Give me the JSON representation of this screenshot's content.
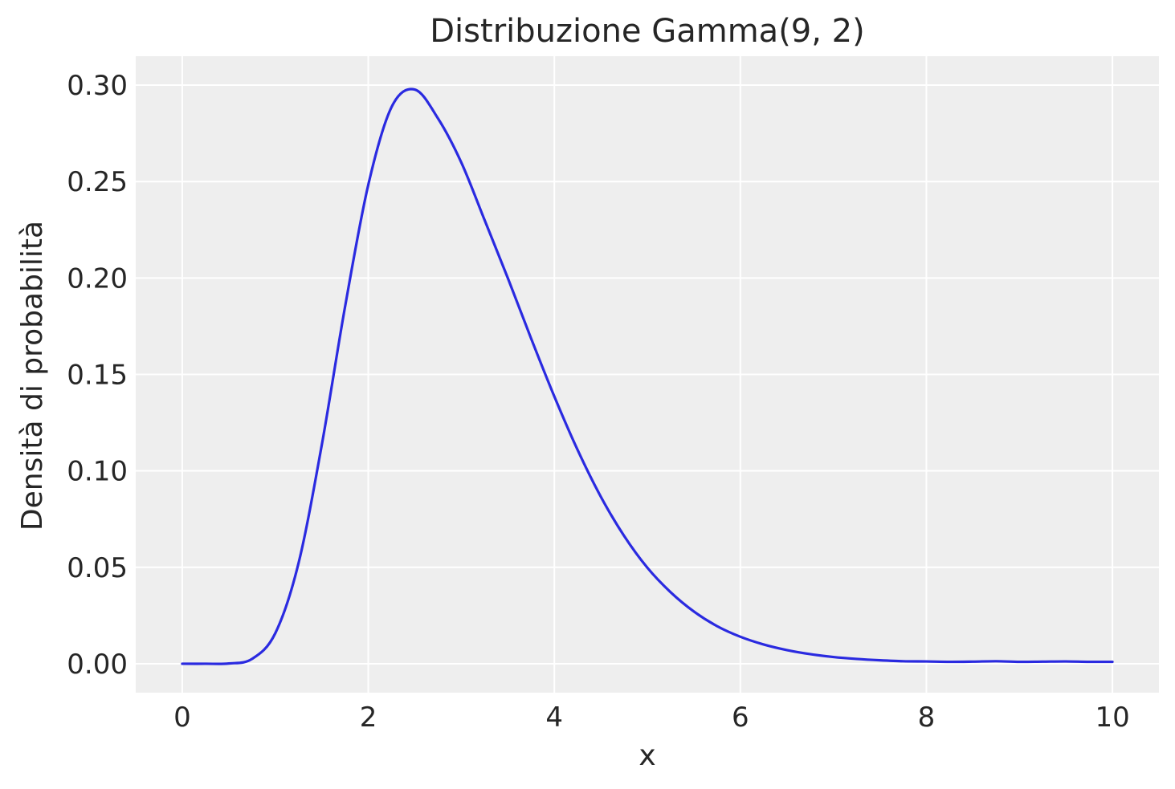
{
  "chart_data": {
    "type": "line",
    "title": "Distribuzione Gamma(9, 2)",
    "xlabel": "x",
    "ylabel": "Densità di probabilità",
    "xlim": [
      -0.5,
      10.5
    ],
    "ylim": [
      -0.015,
      0.315
    ],
    "xticks": [
      0,
      2,
      4,
      6,
      8,
      10
    ],
    "xtick_labels": [
      "0",
      "2",
      "4",
      "6",
      "8",
      "10"
    ],
    "yticks": [
      0.0,
      0.05,
      0.1,
      0.15,
      0.2,
      0.25,
      0.3
    ],
    "ytick_labels": [
      "0.00",
      "0.05",
      "0.10",
      "0.15",
      "0.20",
      "0.25",
      "0.30"
    ],
    "grid": true,
    "colors": {
      "line": "#2a2ae0",
      "plot_background": "#eeeeee",
      "grid": "#ffffff"
    },
    "series": [
      {
        "x": [
          0,
          0.25,
          0.5,
          0.75,
          1.0,
          1.25,
          1.5,
          1.75,
          2.0,
          2.25,
          2.5,
          2.75,
          3.0,
          3.25,
          3.5,
          3.75,
          4.0,
          4.25,
          4.5,
          4.75,
          5.0,
          5.25,
          5.5,
          5.75,
          6.0,
          6.25,
          6.5,
          6.75,
          7.0,
          7.25,
          7.5,
          7.75,
          8.0,
          8.25,
          8.5,
          8.75,
          9.0,
          9.25,
          9.5,
          9.75,
          10.0
        ],
        "y": [
          0.0,
          7.7e-07,
          0.000136,
          0.00249,
          0.0158,
          0.0521,
          0.1134,
          0.185,
          0.2483,
          0.2886,
          0.2977,
          0.2827,
          0.2599,
          0.2301,
          0.2,
          0.1687,
          0.1386,
          0.1109,
          0.0866,
          0.0663,
          0.0498,
          0.0371,
          0.0271,
          0.0195,
          0.014,
          0.01,
          0.0071,
          0.005,
          0.0035,
          0.0025,
          0.0018,
          0.0013,
          0.0012,
          0.001,
          0.0011,
          0.0013,
          0.001,
          0.0011,
          0.0012,
          0.001,
          0.001
        ]
      }
    ]
  }
}
